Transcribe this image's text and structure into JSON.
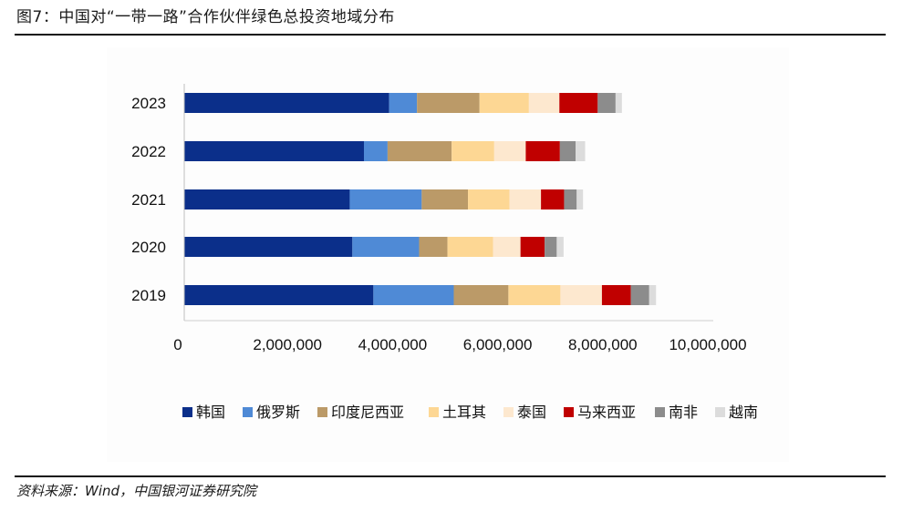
{
  "figure": {
    "title": "图7：中国对“一带一路”合作伙伴绿色总投资地域分布",
    "source": "资料来源：Wind，中国银河证券研究院"
  },
  "chart_data": {
    "type": "bar",
    "orientation": "horizontal",
    "stacked": true,
    "title": "",
    "xlabel": "",
    "ylabel": "",
    "categories": [
      "2023",
      "2022",
      "2021",
      "2020",
      "2019"
    ],
    "x_ticks": [
      "0",
      "2,000,000",
      "4,000,000",
      "6,000,000",
      "8,000,000",
      "10,000,000"
    ],
    "xlim": [
      0,
      10000000
    ],
    "legend_position": "bottom",
    "grid": false,
    "series": [
      {
        "name": "韩国",
        "color": "#0b2f8a",
        "values": [
          3900000,
          3420000,
          3150000,
          3200000,
          3600000
        ]
      },
      {
        "name": "俄罗斯",
        "color": "#4f8ad6",
        "values": [
          530000,
          450000,
          1370000,
          1270000,
          1530000
        ]
      },
      {
        "name": "印度尼西亚",
        "color": "#bb9a68",
        "values": [
          1190000,
          1220000,
          880000,
          540000,
          1040000
        ]
      },
      {
        "name": "土耳其",
        "color": "#fdd794",
        "values": [
          940000,
          810000,
          790000,
          870000,
          990000
        ]
      },
      {
        "name": "泰国",
        "color": "#fde8cf",
        "values": [
          580000,
          600000,
          600000,
          520000,
          790000
        ]
      },
      {
        "name": "马来西亚",
        "color": "#c00000",
        "values": [
          730000,
          650000,
          440000,
          460000,
          550000
        ]
      },
      {
        "name": "南非",
        "color": "#8c8c8c",
        "values": [
          340000,
          300000,
          240000,
          230000,
          350000
        ]
      },
      {
        "name": "越南",
        "color": "#dcdcdc",
        "values": [
          120000,
          180000,
          120000,
          130000,
          130000
        ]
      }
    ]
  }
}
